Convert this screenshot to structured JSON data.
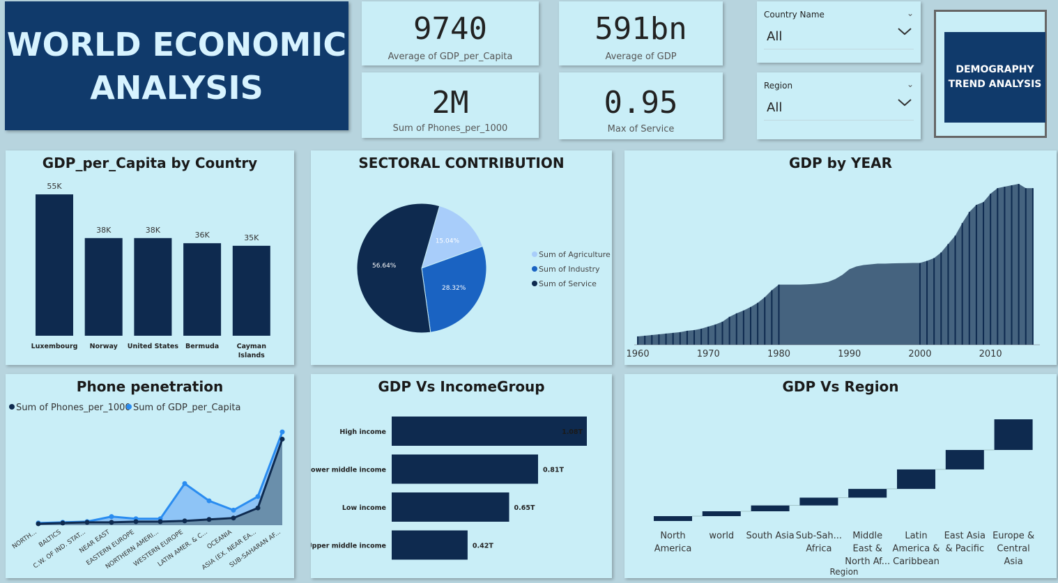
{
  "header": {
    "title_line1": "WORLD ECONOMIC",
    "title_line2": "ANALYSIS"
  },
  "kpis": [
    {
      "value": "9740",
      "label": "Average of GDP_per_Capita"
    },
    {
      "value": "591bn",
      "label": "Average of GDP"
    },
    {
      "value": "2M",
      "label": "Sum of Phones_per_1000"
    },
    {
      "value": "0.95",
      "label": "Max of Service"
    }
  ],
  "slicers": [
    {
      "title": "Country Name",
      "value": "All"
    },
    {
      "title": "Region",
      "value": "All"
    }
  ],
  "nav_button": {
    "line1": "DEMOGRAPHY",
    "line2": "TREND ANALYSIS"
  },
  "colors": {
    "navy": "#0e2a4f",
    "mid_blue": "#1a63c2",
    "light_blue": "#a8cdfa",
    "area_fill": "#45637f",
    "panel": "#c9eef7",
    "background": "#b7d4de"
  },
  "chart_data": [
    {
      "type": "bar",
      "title": "GDP_per_Capita by Country",
      "categories": [
        "Luxembourg",
        "Norway",
        "United States",
        "Bermuda",
        "Cayman Islands"
      ],
      "values": [
        55000,
        38000,
        38000,
        36000,
        35000
      ],
      "data_labels": [
        "55K",
        "38K",
        "38K",
        "36K",
        "35K"
      ]
    },
    {
      "type": "pie",
      "title": "SECTORAL CONTRIBUTION",
      "series": [
        {
          "name": "Sum of Agriculture",
          "value": 15.04,
          "label": "15.04%"
        },
        {
          "name": "Sum of Industry",
          "value": 28.32,
          "label": "28.32%"
        },
        {
          "name": "Sum of Service",
          "value": 56.64,
          "label": "56.64%"
        }
      ],
      "legend": "right"
    },
    {
      "type": "area",
      "title": "GDP by YEAR",
      "x_ticks": [
        "1960",
        "1970",
        "1980",
        "1990",
        "2000",
        "2010"
      ],
      "x": [
        1960,
        1961,
        1962,
        1963,
        1964,
        1965,
        1966,
        1967,
        1968,
        1969,
        1970,
        1971,
        1972,
        1973,
        1974,
        1975,
        1976,
        1977,
        1978,
        1979,
        1980,
        1981,
        1982,
        1983,
        1984,
        1985,
        1986,
        1987,
        1988,
        1989,
        1990,
        1991,
        1992,
        1993,
        1994,
        1995,
        1996,
        1997,
        1998,
        1999,
        2000,
        2001,
        2002,
        2003,
        2004,
        2005,
        2006,
        2007,
        2008,
        2009,
        2010,
        2011,
        2012,
        2013,
        2014,
        2015,
        2016
      ],
      "values": [
        0.06,
        0.065,
        0.07,
        0.075,
        0.08,
        0.085,
        0.09,
        0.1,
        0.105,
        0.115,
        0.13,
        0.145,
        0.165,
        0.2,
        0.225,
        0.245,
        0.27,
        0.3,
        0.34,
        0.39,
        0.43,
        0.43,
        0.43,
        0.43,
        0.432,
        0.435,
        0.44,
        0.45,
        0.47,
        0.5,
        0.54,
        0.56,
        0.57,
        0.575,
        0.58,
        0.58,
        0.582,
        0.583,
        0.584,
        0.585,
        0.585,
        0.6,
        0.62,
        0.66,
        0.72,
        0.78,
        0.87,
        0.95,
        1.0,
        1.02,
        1.08,
        1.12,
        1.13,
        1.14,
        1.15,
        1.12,
        1.12
      ]
    },
    {
      "type": "line",
      "title": "Phone penetration",
      "categories": [
        "NORTH...",
        "BALTICS",
        "C.W. OF IND. STAT...",
        "NEAR EAST",
        "EASTERN EUROPE",
        "NORTHERN AMERI...",
        "WESTERN EUROPE",
        "LATIN AMER. & C...",
        "OCEANIA",
        "ASIA (EX. NEAR EA...",
        "SUB-SAHARAN AF..."
      ],
      "series": [
        {
          "name": "Sum of Phones_per_1000",
          "values": [
            2,
            3,
            4,
            4,
            5,
            5,
            6,
            8,
            10,
            24,
            120
          ]
        },
        {
          "name": "Sum of GDP_per_Capita",
          "values": [
            3,
            4,
            5,
            12,
            9,
            9,
            58,
            34,
            21,
            40,
            130
          ]
        }
      ],
      "legend": "top-left"
    },
    {
      "type": "bar",
      "orientation": "horizontal",
      "title": "GDP Vs IncomeGroup",
      "categories": [
        "High income",
        "Lower middle income",
        "Low income",
        "Upper middle income"
      ],
      "values": [
        1.08,
        0.81,
        0.65,
        0.42
      ],
      "data_labels": [
        "1.08T",
        "0.81T",
        "0.65T",
        "0.42T"
      ]
    },
    {
      "type": "bar",
      "subtype": "waterfall",
      "title": "GDP Vs Region",
      "xlabel": "Region",
      "categories": [
        "North America",
        "world",
        "South Asia",
        "Sub-Sah... Africa",
        "Middle East & North Af...",
        "Latin America & Caribbean",
        "East Asia & Pacific",
        "Europe & Central Asia"
      ],
      "values": [
        1,
        1,
        1.2,
        1.6,
        1.8,
        4,
        4,
        6.3
      ]
    }
  ]
}
